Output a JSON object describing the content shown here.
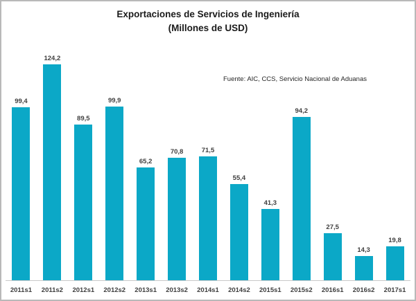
{
  "colors": {
    "bar": "#0ba8c7",
    "frame_border": "#b9b9b9",
    "axis_line": "#c8c8c8",
    "label_text": "#3f3f3f"
  },
  "chart_data": {
    "type": "bar",
    "title": "Exportaciones de Servicios de Ingeniería",
    "subtitle": "(Millones de USD)",
    "source_note": "Fuente: AIC, CCS, Servicio Nacional de Aduanas",
    "categories": [
      "2011s1",
      "2011s2",
      "2012s1",
      "2012s2",
      "2013s1",
      "2013s2",
      "2014s1",
      "2014s2",
      "2015s1",
      "2015s2",
      "2016s1",
      "2016s2",
      "2017s1"
    ],
    "values": [
      99.4,
      124.2,
      89.5,
      99.9,
      65.2,
      70.8,
      71.5,
      55.4,
      41.3,
      94.2,
      27.5,
      14.3,
      19.8
    ],
    "value_labels": [
      "99,4",
      "124,2",
      "89,5",
      "99,9",
      "65,2",
      "70,8",
      "71,5",
      "55,4",
      "41,3",
      "94,2",
      "27,5",
      "14,3",
      "19,8"
    ],
    "ylabel": "",
    "xlabel": "",
    "ylim": [
      0,
      130
    ],
    "grid": false,
    "legend": false,
    "data_labels_position": "above-bars"
  }
}
